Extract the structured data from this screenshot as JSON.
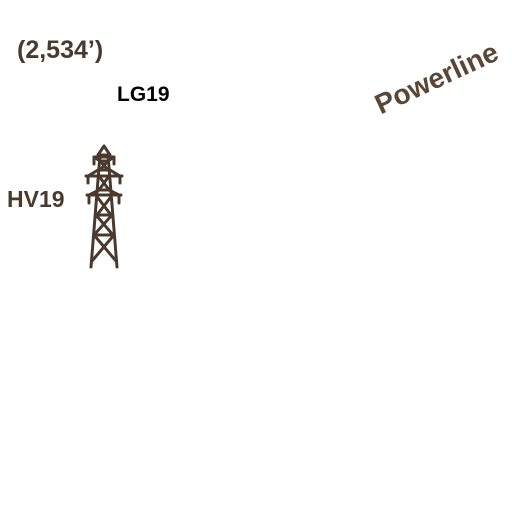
{
  "map": {
    "elevation_label": "(2,534’)",
    "lift_label": "LG19",
    "tower_label": "HV19",
    "trail_label": "Powerline",
    "icons": [
      "transmission-tower-icon"
    ],
    "colors": {
      "label_brown": "#4a3a2e",
      "trail_brown": "#5b4636",
      "lift_label_black": "#000000",
      "tower_stroke": "#4a3a2e"
    }
  }
}
